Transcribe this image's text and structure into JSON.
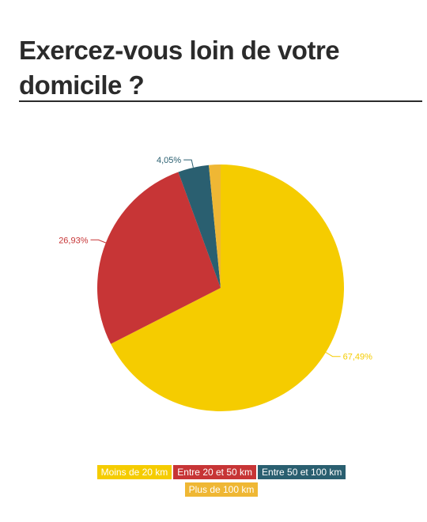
{
  "title": "Exercez-vous loin de votre domicile ?",
  "chart_data": {
    "type": "pie",
    "categories": [
      "Moins de 20 km",
      "Entre 20 et 50 km",
      "Entre 50 et 100 km",
      "Plus de 100 km"
    ],
    "values": [
      67.49,
      26.93,
      4.05,
      1.53
    ],
    "data_labels": [
      "67,49%",
      "26,93%",
      "4,05%",
      ""
    ],
    "colors": [
      "#f5cc00",
      "#c73536",
      "#2a5f70",
      "#efb734"
    ],
    "start_angle_deg": 0,
    "direction": "clockwise",
    "legend_position": "bottom"
  }
}
